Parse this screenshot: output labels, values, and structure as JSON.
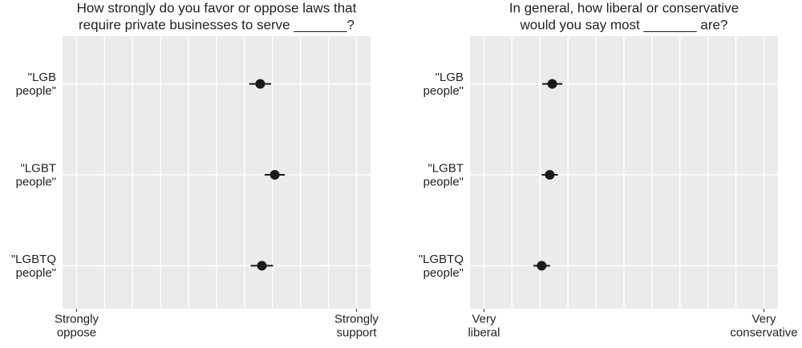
{
  "chart_data": [
    {
      "type": "dot",
      "title": "How strongly do you favor or oppose laws that\nrequire private businesses to serve _______?",
      "categories": [
        "\"LGB\npeople\"",
        "\"LGBT\npeople\"",
        "\"LGBTQ\npeople\""
      ],
      "values": [
        0.656,
        0.708,
        0.662
      ],
      "errors": [
        0.039,
        0.036,
        0.04
      ],
      "color": "#1a1a1a",
      "xlim": [
        -0.05,
        1.05
      ],
      "xticks": [
        {
          "value": 0,
          "label": "Strongly\noppose"
        },
        {
          "value": 1,
          "label": "Strongly\nsupport"
        }
      ],
      "xgrid": [
        0,
        0.1,
        0.2,
        0.3,
        0.4,
        0.5,
        0.6,
        0.7,
        0.8,
        0.9,
        1
      ],
      "grid": true
    },
    {
      "type": "dot",
      "title": "In general, how liberal or conservative\nwould you say most _______ are?",
      "categories": [
        "\"LGB\npeople\"",
        "\"LGBT\npeople\"",
        "\"LGBTQ\npeople\""
      ],
      "values": [
        0.244,
        0.235,
        0.206
      ],
      "errors": [
        0.036,
        0.029,
        0.03
      ],
      "color": "#1a1a1a",
      "xlim": [
        -0.05,
        1.05
      ],
      "xticks": [
        {
          "value": 0,
          "label": "Very\nliberal"
        },
        {
          "value": 1,
          "label": "Very\nconservative"
        }
      ],
      "xgrid": [
        0,
        0.1,
        0.2,
        0.3,
        0.4,
        0.5,
        0.6,
        0.7,
        0.8,
        0.9,
        1
      ],
      "grid": true
    }
  ]
}
